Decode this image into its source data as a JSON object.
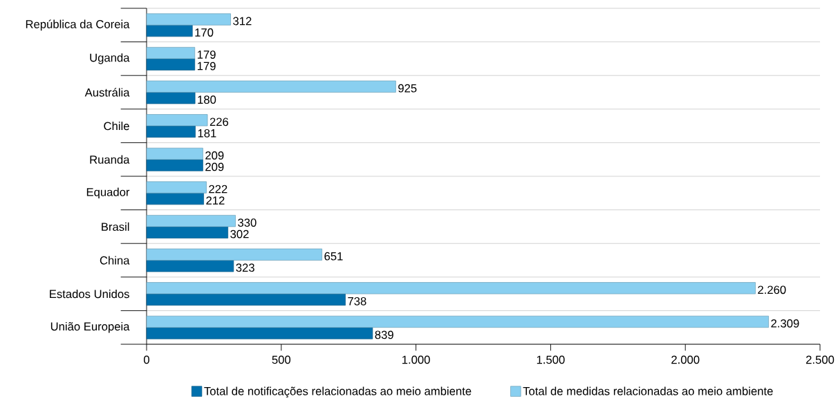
{
  "chart_data": {
    "type": "bar",
    "orientation": "horizontal",
    "categories": [
      "República da Coreia",
      "Uganda",
      "Austrália",
      "Chile",
      "Ruanda",
      "Equador",
      "Brasil",
      "China",
      "Estados Unidos",
      "União Europeia"
    ],
    "series": [
      {
        "name": "Total de notificações relacionadas ao meio ambiente",
        "color": "#0070ad",
        "values": [
          170,
          179,
          180,
          181,
          209,
          212,
          302,
          323,
          738,
          839
        ],
        "value_labels": [
          "170",
          "179",
          "180",
          "181",
          "209",
          "212",
          "302",
          "323",
          "738",
          "839"
        ]
      },
      {
        "name": "Total de medidas relacionadas ao meio ambiente",
        "color": "#89cff0",
        "values": [
          312,
          179,
          925,
          226,
          209,
          222,
          330,
          651,
          2260,
          2309
        ],
        "value_labels": [
          "312",
          "179",
          "925",
          "226",
          "209",
          "222",
          "330",
          "651",
          "2.260",
          "2.309"
        ]
      }
    ],
    "xlim": [
      0,
      2500
    ],
    "xticks": [
      0,
      500,
      {
        "value": 1000,
        "label": "1.000"
      },
      {
        "value": 1500,
        "label": "1.500"
      },
      {
        "value": 2000,
        "label": "2.000"
      },
      {
        "value": 2500,
        "label": "2.500"
      }
    ],
    "grid": "y",
    "legend": "bottom"
  }
}
